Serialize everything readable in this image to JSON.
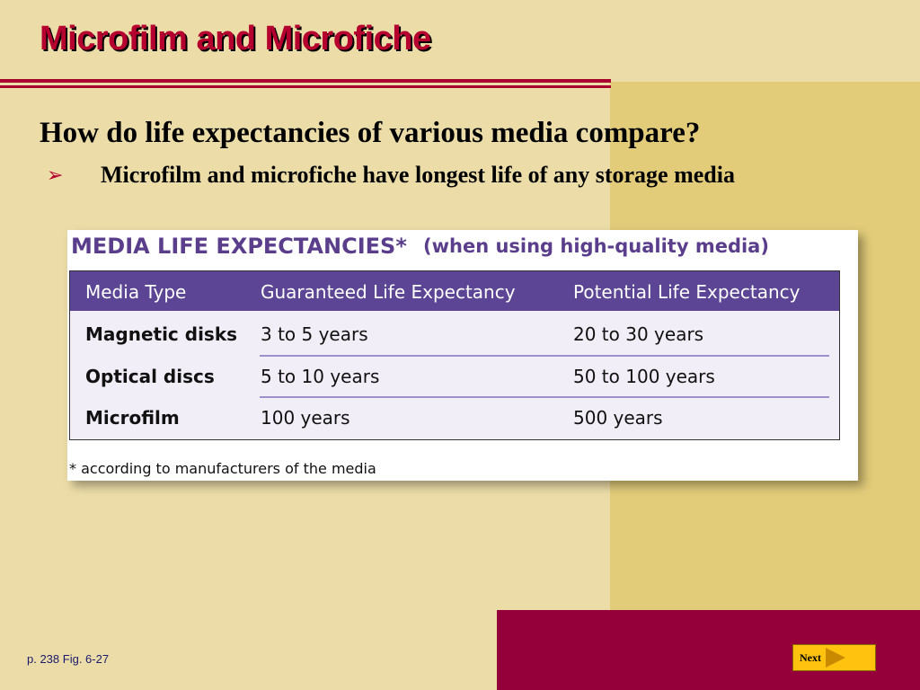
{
  "slide": {
    "title": "Microfilm and Microfiche",
    "question": "How do life expectancies of various media compare?",
    "bullet_marker": "➢",
    "bullet": "Microfilm and microfiche have longest life of any storage media"
  },
  "figure": {
    "title": "MEDIA LIFE EXPECTANCIES*",
    "subtitle": "(when using high-quality media)",
    "headers": [
      "Media Type",
      "Guaranteed Life Expectancy",
      "Potential Life Expectancy"
    ],
    "rows": [
      [
        "Magnetic disks",
        "3 to 5 years",
        "20 to 30 years"
      ],
      [
        "Optical discs",
        "5 to 10 years",
        "50 to 100 years"
      ],
      [
        "Microfilm",
        "100 years",
        "500 years"
      ]
    ],
    "footnote": "* according to manufacturers of the media"
  },
  "footer": {
    "page_ref": "p. 238 Fig. 6-27",
    "next_label": "Next"
  },
  "colors": {
    "background": "#ecdda8",
    "accent_panel": "#e2cc7a",
    "maroon": "#95003a",
    "title_red": "#b5002f",
    "table_header": "#5b4594",
    "next_button": "#ffc20e"
  }
}
